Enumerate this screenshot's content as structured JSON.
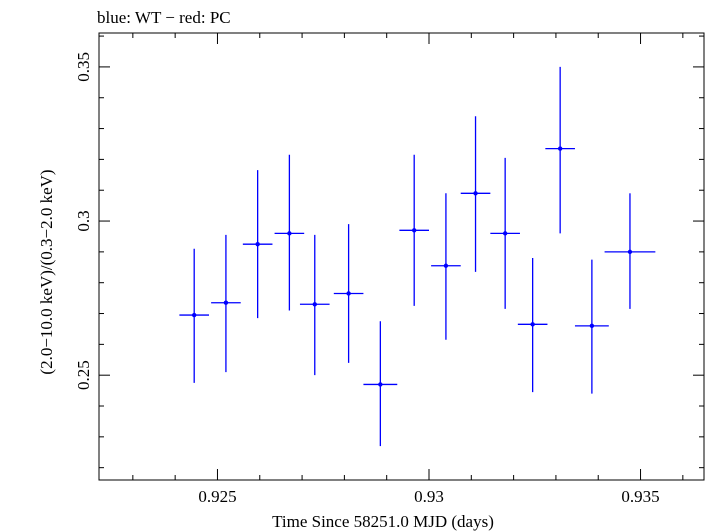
{
  "chart_data": {
    "type": "scatter",
    "title": "blue: WT − red: PC",
    "xlabel": "Time Since 58251.0 MJD (days)",
    "ylabel": "(2.0−10.0 keV)/(0.3−2.0 keV)",
    "xlim": [
      0.9222,
      0.9365
    ],
    "ylim": [
      0.216,
      0.361
    ],
    "x_ticks": [
      {
        "value": 0.925,
        "label": "0.925"
      },
      {
        "value": 0.93,
        "label": "0.93"
      },
      {
        "value": 0.935,
        "label": "0.935"
      }
    ],
    "y_ticks": [
      {
        "value": 0.25,
        "label": "0.25"
      },
      {
        "value": 0.3,
        "label": "0.3"
      },
      {
        "value": 0.35,
        "label": "0.35"
      }
    ],
    "x_minor_step": 0.001,
    "y_minor_step": 0.01,
    "grid": false,
    "series": [
      {
        "color": "#0000ff",
        "points": [
          {
            "x": 0.92445,
            "xerr": 0.00035,
            "y": 0.2695,
            "ylo": 0.2475,
            "yhi": 0.291
          },
          {
            "x": 0.9252,
            "xerr": 0.00035,
            "y": 0.2735,
            "ylo": 0.251,
            "yhi": 0.2955
          },
          {
            "x": 0.92595,
            "xerr": 0.00035,
            "y": 0.2925,
            "ylo": 0.2685,
            "yhi": 0.3165
          },
          {
            "x": 0.9267,
            "xerr": 0.00035,
            "y": 0.296,
            "ylo": 0.271,
            "yhi": 0.3215
          },
          {
            "x": 0.9273,
            "xerr": 0.00035,
            "y": 0.273,
            "ylo": 0.25,
            "yhi": 0.2955
          },
          {
            "x": 0.9281,
            "xerr": 0.00035,
            "y": 0.2765,
            "ylo": 0.254,
            "yhi": 0.299
          },
          {
            "x": 0.92885,
            "xerr": 0.0004,
            "y": 0.247,
            "ylo": 0.227,
            "yhi": 0.2675
          },
          {
            "x": 0.92965,
            "xerr": 0.00035,
            "y": 0.297,
            "ylo": 0.2725,
            "yhi": 0.3215
          },
          {
            "x": 0.9304,
            "xerr": 0.00035,
            "y": 0.2855,
            "ylo": 0.2615,
            "yhi": 0.309
          },
          {
            "x": 0.9311,
            "xerr": 0.00035,
            "y": 0.309,
            "ylo": 0.2835,
            "yhi": 0.334
          },
          {
            "x": 0.9318,
            "xerr": 0.00035,
            "y": 0.296,
            "ylo": 0.2715,
            "yhi": 0.3205
          },
          {
            "x": 0.93245,
            "xerr": 0.00035,
            "y": 0.2665,
            "ylo": 0.2445,
            "yhi": 0.288
          },
          {
            "x": 0.9331,
            "xerr": 0.00035,
            "y": 0.3235,
            "ylo": 0.296,
            "yhi": 0.35
          },
          {
            "x": 0.93385,
            "xerr": 0.0004,
            "y": 0.266,
            "ylo": 0.244,
            "yhi": 0.2875
          },
          {
            "x": 0.93475,
            "xerr": 0.0006,
            "y": 0.29,
            "ylo": 0.2715,
            "yhi": 0.309
          }
        ]
      }
    ]
  }
}
